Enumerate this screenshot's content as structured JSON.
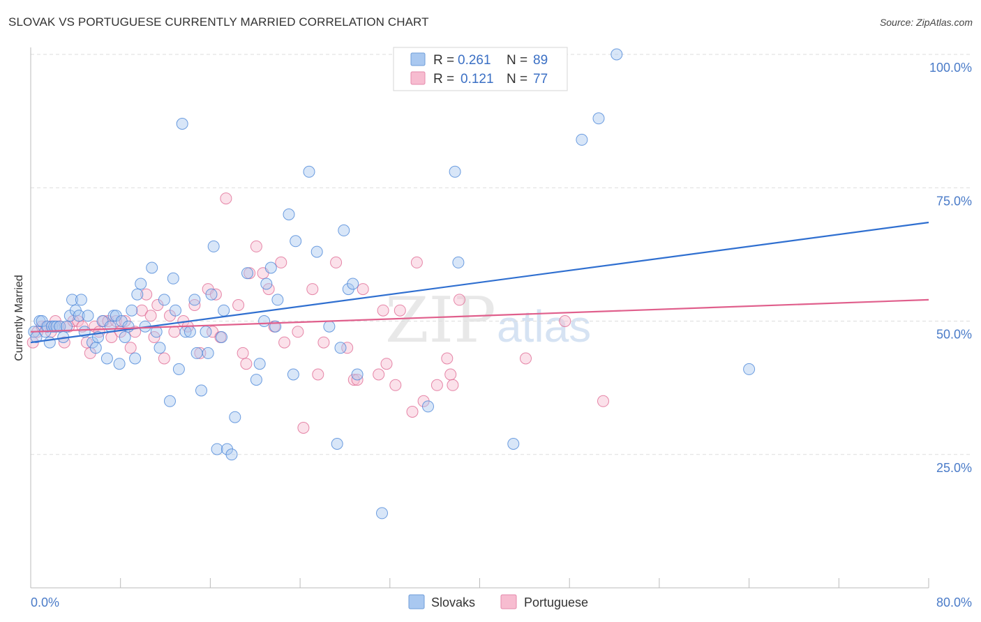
{
  "header": {
    "title": "SLOVAK VS PORTUGUESE CURRENTLY MARRIED CORRELATION CHART",
    "source": "Source: ZipAtlas.com"
  },
  "watermark": {
    "zip": "ZIP",
    "atlas": "atlas"
  },
  "legend": {
    "rows": [
      {
        "r_label": "R =",
        "r_value": "0.261",
        "n_label": "N =",
        "n_value": "89",
        "color": "#a9c8f0"
      },
      {
        "r_label": "R =",
        "r_value": "0.121",
        "n_label": "N =",
        "n_value": "77",
        "color": "#f7bcd0"
      }
    ]
  },
  "bottom_legend": [
    {
      "label": "Slovaks",
      "color": "#a9c8f0"
    },
    {
      "label": "Portuguese",
      "color": "#f7bcd0"
    }
  ],
  "chart_data": {
    "type": "scatter",
    "title": "SLOVAK VS PORTUGUESE CURRENTLY MARRIED CORRELATION CHART",
    "xlabel": "",
    "ylabel": "Currently Married",
    "xlim": [
      0,
      80
    ],
    "ylim": [
      0,
      100
    ],
    "x_tick_labels": [
      "0.0%",
      "80.0%"
    ],
    "y_tick_labels": [
      "25.0%",
      "50.0%",
      "75.0%",
      "100.0%"
    ],
    "y_ticks": [
      25,
      50,
      75,
      100
    ],
    "grid": true,
    "legend_position": "top-center",
    "series": [
      {
        "name": "Slovaks",
        "color": "#4a86d8",
        "fill": "#a9c8f0",
        "trend": {
          "x": [
            0,
            80
          ],
          "y": [
            46,
            68.5
          ],
          "color": "#2f6fd0"
        },
        "points": [
          [
            0.3,
            48
          ],
          [
            0.5,
            47
          ],
          [
            0.8,
            50
          ],
          [
            1.0,
            50
          ],
          [
            1.3,
            48
          ],
          [
            1.5,
            49
          ],
          [
            1.7,
            46
          ],
          [
            1.9,
            49
          ],
          [
            2.1,
            49
          ],
          [
            2.3,
            49
          ],
          [
            2.6,
            49
          ],
          [
            2.9,
            47
          ],
          [
            3.2,
            49
          ],
          [
            3.5,
            51
          ],
          [
            3.7,
            54
          ],
          [
            4.0,
            52
          ],
          [
            4.3,
            51
          ],
          [
            4.5,
            54
          ],
          [
            4.8,
            48
          ],
          [
            5.1,
            51
          ],
          [
            5.5,
            46
          ],
          [
            5.8,
            45
          ],
          [
            6.0,
            47
          ],
          [
            6.4,
            50
          ],
          [
            6.8,
            43
          ],
          [
            7.1,
            49
          ],
          [
            7.4,
            51
          ],
          [
            7.6,
            51
          ],
          [
            7.9,
            42
          ],
          [
            8.1,
            50
          ],
          [
            8.4,
            47
          ],
          [
            8.7,
            49
          ],
          [
            9.0,
            52
          ],
          [
            9.3,
            43
          ],
          [
            9.5,
            55
          ],
          [
            9.8,
            57
          ],
          [
            10.2,
            49
          ],
          [
            10.8,
            60
          ],
          [
            11.2,
            48
          ],
          [
            11.5,
            45
          ],
          [
            11.9,
            54
          ],
          [
            12.4,
            35
          ],
          [
            12.7,
            58
          ],
          [
            12.9,
            52
          ],
          [
            13.2,
            41
          ],
          [
            13.5,
            87
          ],
          [
            13.8,
            48
          ],
          [
            14.2,
            48
          ],
          [
            14.6,
            54
          ],
          [
            14.8,
            44
          ],
          [
            15.2,
            37
          ],
          [
            15.6,
            48
          ],
          [
            15.8,
            44
          ],
          [
            16.1,
            55
          ],
          [
            16.3,
            64
          ],
          [
            16.6,
            26
          ],
          [
            17.0,
            47
          ],
          [
            17.2,
            52
          ],
          [
            17.5,
            26
          ],
          [
            17.9,
            25
          ],
          [
            18.2,
            32
          ],
          [
            19.3,
            59
          ],
          [
            20.1,
            39
          ],
          [
            20.4,
            42
          ],
          [
            20.8,
            50
          ],
          [
            21.0,
            57
          ],
          [
            21.4,
            60
          ],
          [
            21.8,
            49
          ],
          [
            22.0,
            54
          ],
          [
            23.0,
            70
          ],
          [
            23.4,
            40
          ],
          [
            23.6,
            65
          ],
          [
            24.8,
            78
          ],
          [
            25.5,
            63
          ],
          [
            26.6,
            49
          ],
          [
            27.3,
            27
          ],
          [
            27.6,
            45
          ],
          [
            27.9,
            67
          ],
          [
            28.3,
            56
          ],
          [
            28.7,
            57
          ],
          [
            29.1,
            40
          ],
          [
            31.3,
            14
          ],
          [
            35.4,
            34
          ],
          [
            37.8,
            78
          ],
          [
            38.1,
            61
          ],
          [
            43.0,
            27
          ],
          [
            49.1,
            84
          ],
          [
            50.6,
            88
          ],
          [
            64.0,
            41
          ],
          [
            52.2,
            100
          ]
        ]
      },
      {
        "name": "Portuguese",
        "color": "#e06a94",
        "fill": "#f7bcd0",
        "trend": {
          "x": [
            0,
            80
          ],
          "y": [
            48,
            54
          ],
          "color": "#e05f8c"
        },
        "points": [
          [
            0.2,
            46
          ],
          [
            0.6,
            48
          ],
          [
            1.0,
            49
          ],
          [
            1.4,
            49
          ],
          [
            1.8,
            48
          ],
          [
            2.2,
            50
          ],
          [
            2.6,
            49
          ],
          [
            3.0,
            46
          ],
          [
            3.4,
            49
          ],
          [
            3.8,
            50
          ],
          [
            4.2,
            50
          ],
          [
            4.6,
            49
          ],
          [
            5.0,
            46
          ],
          [
            5.3,
            44
          ],
          [
            5.7,
            49
          ],
          [
            6.1,
            48
          ],
          [
            6.5,
            50
          ],
          [
            6.9,
            50
          ],
          [
            7.2,
            47
          ],
          [
            7.6,
            50
          ],
          [
            8.0,
            48
          ],
          [
            8.4,
            50
          ],
          [
            8.9,
            45
          ],
          [
            9.3,
            48
          ],
          [
            9.9,
            52
          ],
          [
            10.3,
            55
          ],
          [
            10.7,
            51
          ],
          [
            11.0,
            47
          ],
          [
            11.3,
            53
          ],
          [
            11.9,
            43
          ],
          [
            12.4,
            51
          ],
          [
            12.8,
            48
          ],
          [
            13.6,
            50
          ],
          [
            14.0,
            49
          ],
          [
            14.6,
            53
          ],
          [
            15.1,
            44
          ],
          [
            15.8,
            56
          ],
          [
            16.2,
            48
          ],
          [
            16.5,
            55
          ],
          [
            16.9,
            47
          ],
          [
            17.4,
            73
          ],
          [
            18.5,
            53
          ],
          [
            18.9,
            44
          ],
          [
            19.2,
            42
          ],
          [
            19.5,
            59
          ],
          [
            20.1,
            64
          ],
          [
            20.7,
            59
          ],
          [
            21.2,
            56
          ],
          [
            21.7,
            49
          ],
          [
            22.3,
            61
          ],
          [
            22.6,
            46
          ],
          [
            23.8,
            48
          ],
          [
            24.3,
            30
          ],
          [
            25.1,
            56
          ],
          [
            25.6,
            40
          ],
          [
            26.1,
            46
          ],
          [
            27.2,
            61
          ],
          [
            28.2,
            45
          ],
          [
            28.8,
            39
          ],
          [
            29.1,
            39
          ],
          [
            29.6,
            56
          ],
          [
            31.0,
            40
          ],
          [
            31.4,
            52
          ],
          [
            31.7,
            42
          ],
          [
            32.5,
            38
          ],
          [
            32.9,
            52
          ],
          [
            34.0,
            33
          ],
          [
            34.4,
            61
          ],
          [
            35.0,
            35
          ],
          [
            36.2,
            38
          ],
          [
            37.1,
            43
          ],
          [
            37.4,
            40
          ],
          [
            37.6,
            38
          ],
          [
            38.2,
            54
          ],
          [
            44.1,
            43
          ],
          [
            47.6,
            50
          ],
          [
            51.0,
            35
          ]
        ]
      }
    ]
  }
}
